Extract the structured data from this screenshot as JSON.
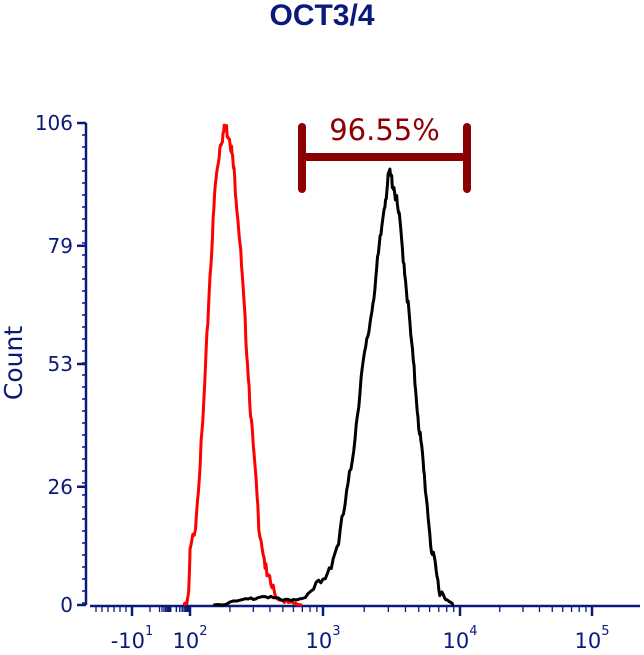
{
  "chart_data": {
    "type": "line",
    "title": "OCT3/4",
    "xlabel": "",
    "ylabel": "Count",
    "x_scale": "biexponential (log)",
    "y_ticks": [
      0,
      26,
      53,
      79,
      106
    ],
    "y_tick_labels": [
      "0",
      "26",
      "53",
      "79",
      "106"
    ],
    "ylim": [
      0,
      106
    ],
    "x_tick_labels": [
      {
        "base": "-10",
        "exp": "1",
        "value": -10
      },
      {
        "base": "10",
        "exp": "2",
        "value": 100
      },
      {
        "base": "10",
        "exp": "3",
        "value": 1000
      },
      {
        "base": "10",
        "exp": "4",
        "value": 10000
      },
      {
        "base": "10",
        "exp": "5",
        "value": 100000
      }
    ],
    "grid": false,
    "series": [
      {
        "color": "#ff0000",
        "points": [
          [
            50,
            0
          ],
          [
            70,
            0.5
          ],
          [
            90,
            4
          ],
          [
            110,
            18
          ],
          [
            125,
            40
          ],
          [
            140,
            70
          ],
          [
            155,
            92
          ],
          [
            170,
            102
          ],
          [
            185,
            105
          ],
          [
            200,
            103
          ],
          [
            215,
            95
          ],
          [
            235,
            82
          ],
          [
            260,
            62
          ],
          [
            290,
            40
          ],
          [
            330,
            18
          ],
          [
            380,
            6
          ],
          [
            450,
            1.5
          ],
          [
            550,
            0.5
          ],
          [
            700,
            0
          ]
        ]
      },
      {
        "color": "#000000",
        "points": [
          [
            150,
            0
          ],
          [
            250,
            1
          ],
          [
            350,
            2
          ],
          [
            500,
            1
          ],
          [
            700,
            1.5
          ],
          [
            1000,
            5
          ],
          [
            1300,
            14
          ],
          [
            1600,
            30
          ],
          [
            1900,
            50
          ],
          [
            2200,
            62
          ],
          [
            2500,
            75
          ],
          [
            2800,
            88
          ],
          [
            3050,
            95
          ],
          [
            3300,
            92
          ],
          [
            3600,
            85
          ],
          [
            4000,
            72
          ],
          [
            4500,
            55
          ],
          [
            5000,
            40
          ],
          [
            5500,
            28
          ],
          [
            6200,
            12
          ],
          [
            7000,
            4
          ],
          [
            8000,
            1
          ],
          [
            9000,
            0
          ]
        ]
      }
    ],
    "gate": {
      "label": "96.55%",
      "x_start": 700,
      "x_end": 10000,
      "color": "#8b0000"
    }
  }
}
